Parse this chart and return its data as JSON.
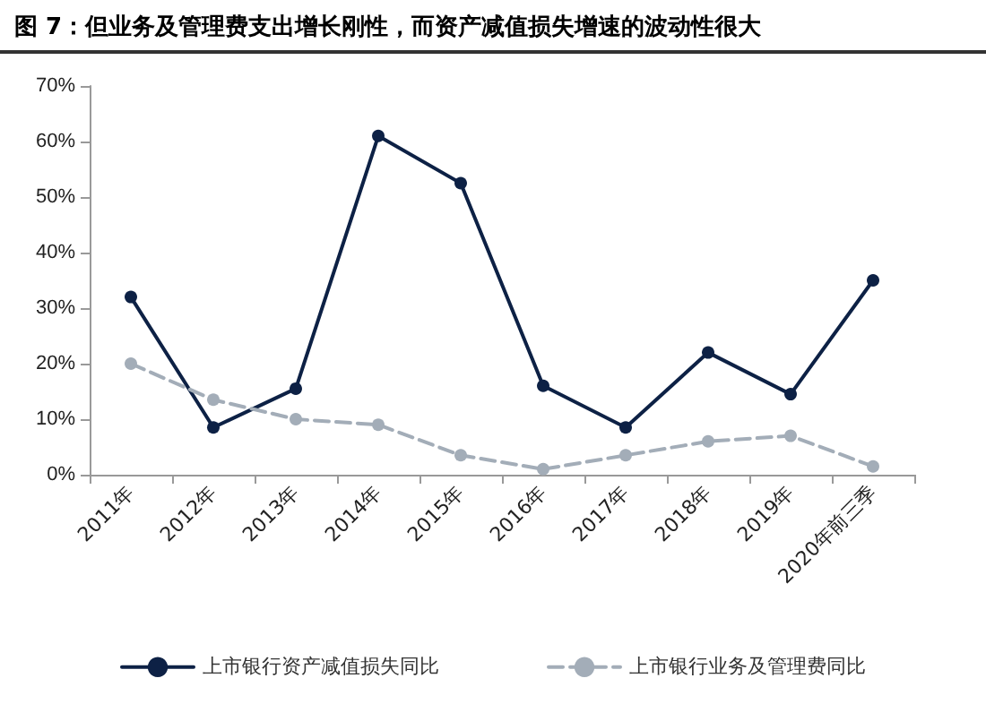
{
  "chart_data": {
    "type": "line",
    "title": "图 7：但业务及管理费支出增长刚性，而资产减值损失增速的波动性很大",
    "categories": [
      "2011年",
      "2012年",
      "2013年",
      "2014年",
      "2015年",
      "2016年",
      "2017年",
      "2018年",
      "2019年",
      "2020年前三季"
    ],
    "series": [
      {
        "name": "上市银行资产减值损失同比",
        "color": "#0d2145",
        "values": [
          32,
          8.5,
          15.5,
          61,
          52.5,
          16,
          8.5,
          22,
          14.5,
          35
        ],
        "line_style": "solid"
      },
      {
        "name": "上市银行业务及管理费同比",
        "color": "#a3adb8",
        "values": [
          20,
          13.5,
          10,
          9,
          3.5,
          1,
          3.5,
          6,
          7,
          1.5
        ],
        "line_style": "dashed"
      }
    ],
    "ylim": [
      0,
      70
    ],
    "yticks": [
      {
        "value": 0,
        "label": "0%"
      },
      {
        "value": 10,
        "label": "10%"
      },
      {
        "value": 20,
        "label": "20%"
      },
      {
        "value": 30,
        "label": "30%"
      },
      {
        "value": 40,
        "label": "40%"
      },
      {
        "value": 50,
        "label": "50%"
      },
      {
        "value": 60,
        "label": "60%"
      },
      {
        "value": 70,
        "label": "70%"
      }
    ],
    "grid": false,
    "legend": "bottom",
    "marker": "circle"
  }
}
